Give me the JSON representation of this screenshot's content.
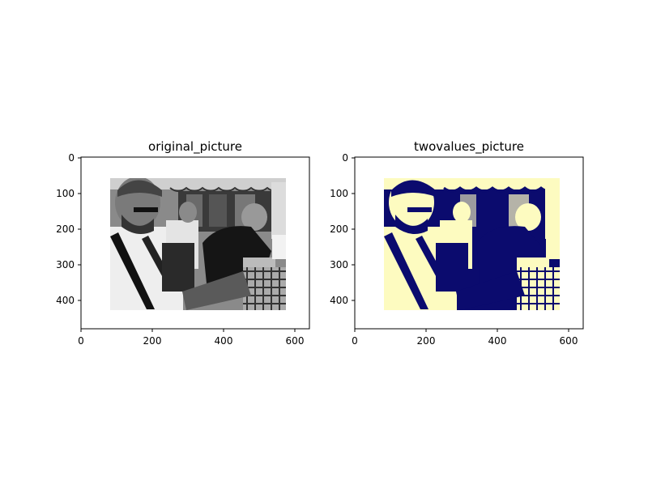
{
  "figure": {
    "panels": [
      {
        "title": "original_picture",
        "colormap": "gray",
        "image_description": "Grayscale photo of three young men seated at a table; the nearest one with glasses and beard looks down at papers",
        "x_ticks": [
          "0",
          "200",
          "400",
          "600"
        ],
        "y_ticks": [
          "0",
          "100",
          "200",
          "300",
          "400"
        ]
      },
      {
        "title": "twovalues_picture",
        "colormap": "binary navy / pale yellow",
        "image_description": "Same photo thresholded to two colors: dark navy and pale yellow",
        "x_ticks": [
          "0",
          "200",
          "400",
          "600"
        ],
        "y_ticks": [
          "0",
          "100",
          "200",
          "300",
          "400"
        ]
      }
    ],
    "colors": {
      "navy": "#0b0b6e",
      "pale_yellow": "#fdfbc0",
      "gray_dark": "#222222",
      "gray_light": "#e8e8e8"
    }
  }
}
